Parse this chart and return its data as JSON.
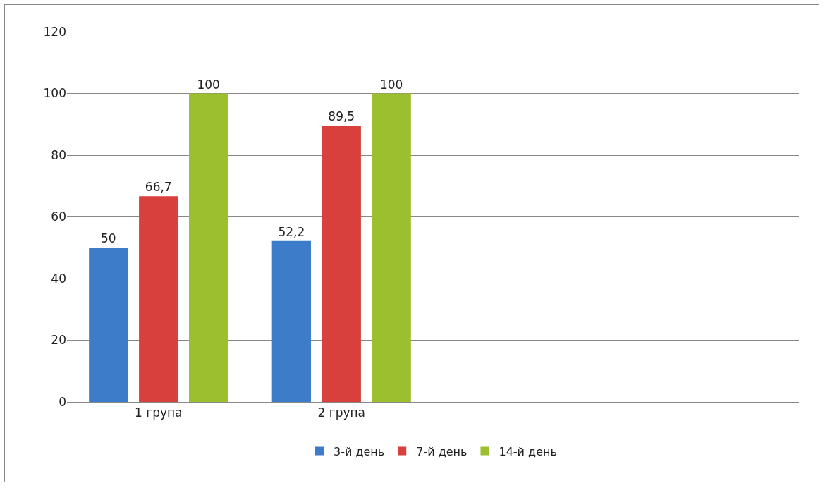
{
  "chart_data": {
    "type": "bar",
    "categories": [
      "1 група",
      "2 група",
      null,
      null
    ],
    "series": [
      {
        "name": "3-й день",
        "color": "#3d7cc9",
        "values": [
          50,
          52.2,
          null,
          null
        ],
        "value_labels": [
          "50",
          "52,2",
          null,
          null
        ]
      },
      {
        "name": "7-й день",
        "color": "#d7403d",
        "values": [
          66.7,
          89.5,
          null,
          null
        ],
        "value_labels": [
          "66,7",
          "89,5",
          null,
          null
        ]
      },
      {
        "name": "14-й день",
        "color": "#9bbf2e",
        "values": [
          100,
          100,
          null,
          null
        ],
        "value_labels": [
          "100",
          "100",
          null,
          null
        ]
      }
    ],
    "ylim": [
      0,
      120
    ],
    "yticks": [
      0,
      20,
      40,
      60,
      80,
      100,
      120
    ],
    "grid": "y",
    "legend": "bottom"
  }
}
